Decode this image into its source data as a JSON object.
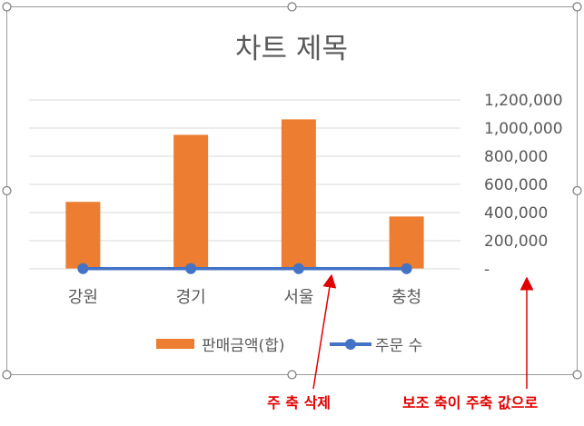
{
  "chart_data": {
    "type": "bar",
    "title": "차트 제목",
    "categories": [
      "강원",
      "경기",
      "서울",
      "충청"
    ],
    "series": [
      {
        "name": "판매금액(합)",
        "type": "bar",
        "axis": "secondary",
        "color": "#ED7D31",
        "values": [
          476000,
          952000,
          1062000,
          372000
        ]
      },
      {
        "name": "주문 수",
        "type": "line",
        "axis": "primary",
        "color": "#4472C4",
        "values": [
          14,
          14,
          14,
          12
        ]
      }
    ],
    "secondary_axis": {
      "min": 0,
      "max": 1200000,
      "step": 200000,
      "tick_labels": [
        "-",
        "200,000",
        "400,000",
        "600,000",
        "800,000",
        "1,000,000",
        "1,200,000"
      ]
    },
    "gridlines": true,
    "legend_position": "bottom"
  },
  "annotations": {
    "delete_primary_axis": "주 축 삭제",
    "secondary_as_primary": "보조 축이 주축 값으로",
    "color": "#E00000"
  },
  "selection_handles": true
}
